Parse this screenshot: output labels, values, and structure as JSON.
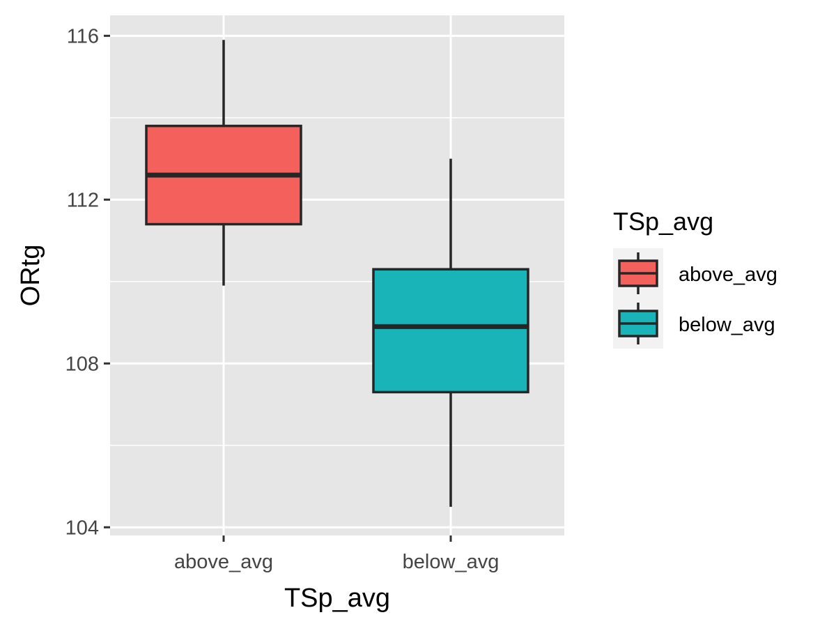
{
  "chart_data": {
    "type": "box",
    "xlabel": "TSp_avg",
    "ylabel": "ORtg",
    "ylim": [
      103.8,
      116.5
    ],
    "y_ticks": [
      104,
      108,
      112,
      116
    ],
    "y_minor_grid": [
      106,
      110,
      114
    ],
    "grid": true,
    "legend": {
      "title": "TSp_avg",
      "position": "right"
    },
    "categories": [
      "above_avg",
      "below_avg"
    ],
    "series": [
      {
        "name": "above_avg",
        "color": "#F4605C",
        "whisker_low": 109.9,
        "q1": 111.4,
        "median": 112.6,
        "q3": 113.8,
        "whisker_high": 115.9
      },
      {
        "name": "below_avg",
        "color": "#18B4B8",
        "whisker_low": 104.5,
        "q1": 107.3,
        "median": 108.9,
        "q3": 110.3,
        "whisker_high": 113.0
      }
    ],
    "colors": {
      "panel_background": "#E6E6E6",
      "grid": "#FFFFFF",
      "box_outline": "#262626",
      "tick_label": "#444444"
    }
  }
}
